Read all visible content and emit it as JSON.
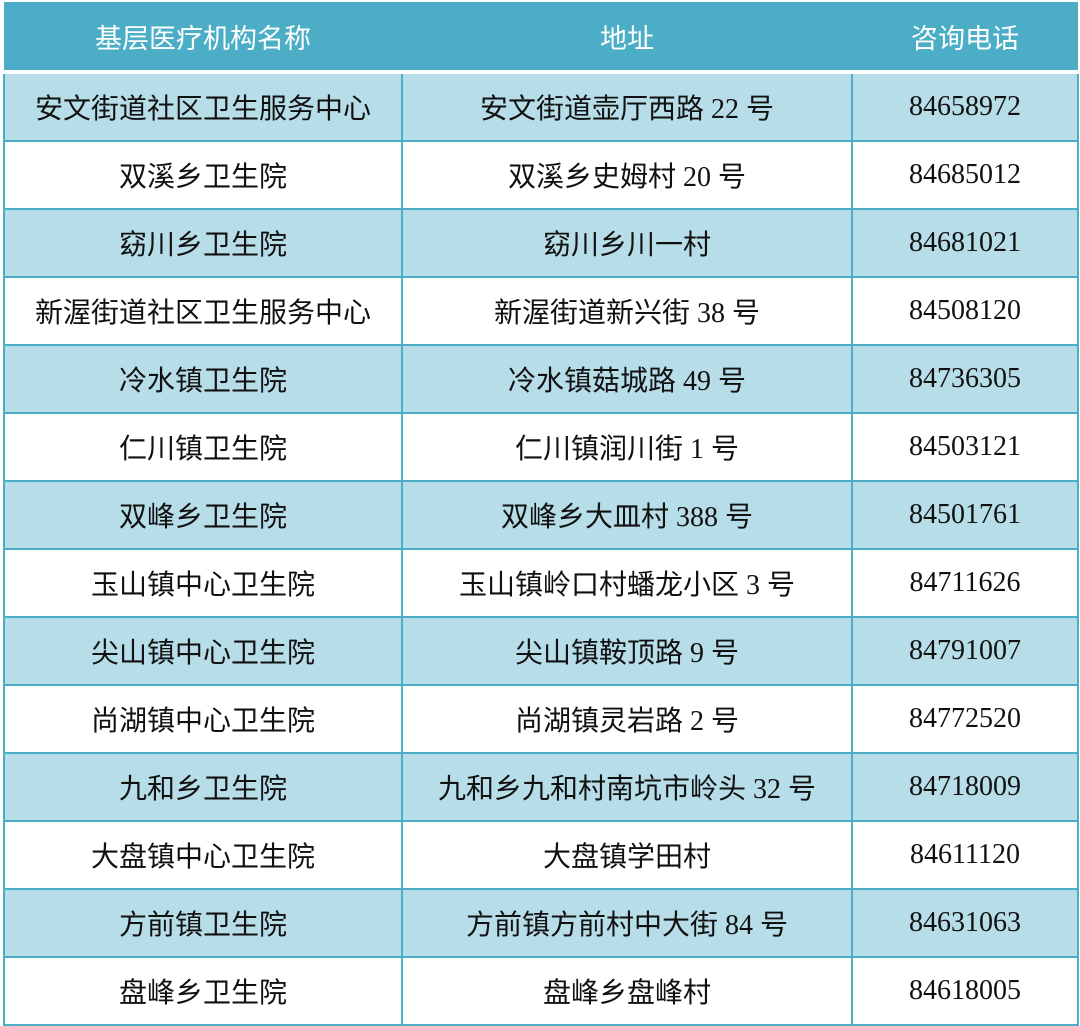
{
  "table": {
    "headers": [
      "基层医疗机构名称",
      "地址",
      "咨询电话"
    ],
    "rows": [
      [
        "安文街道社区卫生服务中心",
        "安文街道壶厅西路 22 号",
        "84658972"
      ],
      [
        "双溪乡卫生院",
        "双溪乡史姆村 20 号",
        "84685012"
      ],
      [
        "窈川乡卫生院",
        "窈川乡川一村",
        "84681021"
      ],
      [
        "新渥街道社区卫生服务中心",
        "新渥街道新兴街 38 号",
        "84508120"
      ],
      [
        "冷水镇卫生院",
        "冷水镇菇城路 49 号",
        "84736305"
      ],
      [
        "仁川镇卫生院",
        "仁川镇润川街 1 号",
        "84503121"
      ],
      [
        "双峰乡卫生院",
        "双峰乡大皿村 388 号",
        "84501761"
      ],
      [
        "玉山镇中心卫生院",
        "玉山镇岭口村蟠龙小区 3 号",
        "84711626"
      ],
      [
        "尖山镇中心卫生院",
        "尖山镇鞍顶路 9 号",
        "84791007"
      ],
      [
        "尚湖镇中心卫生院",
        "尚湖镇灵岩路 2 号",
        "84772520"
      ],
      [
        "九和乡卫生院",
        "九和乡九和村南坑市岭头 32 号",
        "84718009"
      ],
      [
        "大盘镇中心卫生院",
        "大盘镇学田村",
        "84611120"
      ],
      [
        "方前镇卫生院",
        "方前镇方前村中大街 84 号",
        "84631063"
      ],
      [
        "盘峰乡卫生院",
        "盘峰乡盘峰村",
        "84618005"
      ]
    ]
  },
  "colors": {
    "header_bg": "#4badc6",
    "band_bg": "#b7dde8",
    "border": "#4badc6"
  }
}
